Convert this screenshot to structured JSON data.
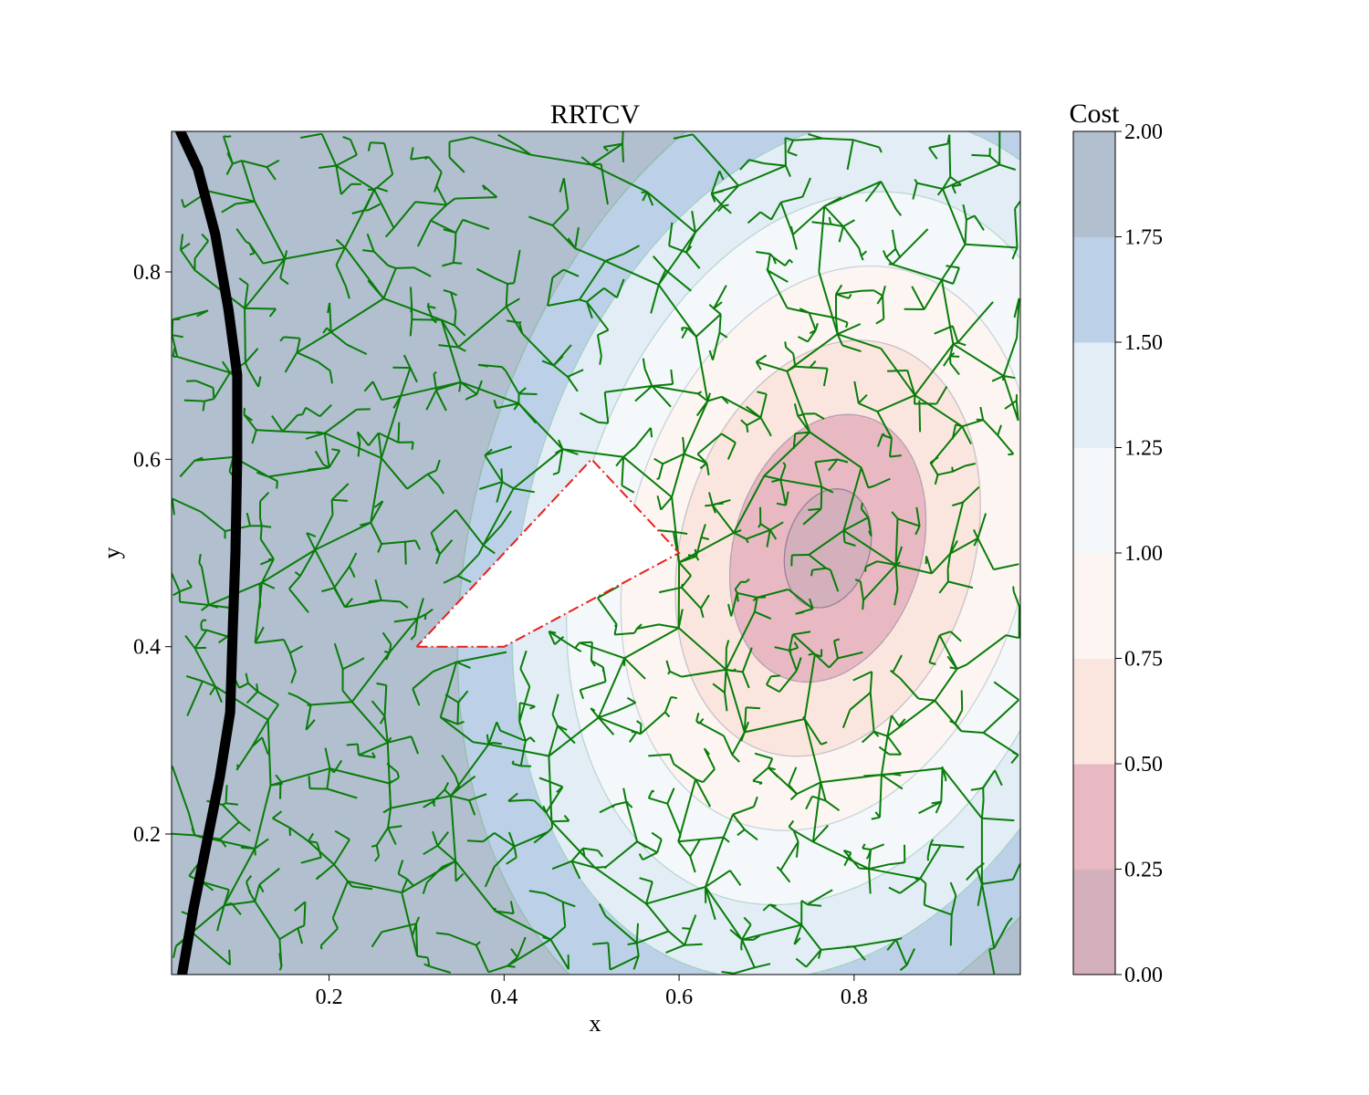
{
  "chart_data": {
    "type": "contour",
    "title": "RRTCV",
    "xlabel": "x",
    "ylabel": "y",
    "xlim": [
      0.02,
      0.99
    ],
    "ylim": [
      0.05,
      0.95
    ],
    "x_ticks": [
      0.2,
      0.4,
      0.6,
      0.8
    ],
    "y_ticks": [
      0.2,
      0.4,
      0.6,
      0.8
    ],
    "grid": false,
    "cost_field": {
      "center": [
        0.77,
        0.505
      ],
      "scale": [
        0.45,
        0.62
      ],
      "rotation_deg": -20
    },
    "colorbar": {
      "title": "Cost",
      "levels": [
        0.0,
        0.25,
        0.5,
        0.75,
        1.0,
        1.25,
        1.5,
        1.75,
        2.0
      ],
      "tick_labels": [
        "0.00",
        "0.25",
        "0.50",
        "0.75",
        "1.00",
        "1.25",
        "1.50",
        "1.75",
        "2.00"
      ],
      "colors": [
        "#d3b0bb",
        "#e8b9c2",
        "#fbe6df",
        "#fcf5f2",
        "#f4f8fb",
        "#e2edf5",
        "#bcd1e7",
        "#b1bfcf"
      ],
      "line_colors": [
        "#9a7f97",
        "#b39fb0",
        "#c8c0c6",
        "#c9d3d6",
        "#b8d6d3",
        "#9fcdc4",
        "#93bba8",
        "#8fa8a0"
      ]
    },
    "obstacle": {
      "vertices": [
        [
          0.3,
          0.4
        ],
        [
          0.4,
          0.4
        ],
        [
          0.6,
          0.5
        ],
        [
          0.5,
          0.6
        ]
      ],
      "outline_color": "#e8201a",
      "line_style": "dash-dot"
    },
    "boundary_curve": {
      "color": "#000000",
      "points": [
        [
          0.03,
          0.95
        ],
        [
          0.05,
          0.91
        ],
        [
          0.07,
          0.84
        ],
        [
          0.085,
          0.76
        ],
        [
          0.095,
          0.69
        ],
        [
          0.095,
          0.6
        ],
        [
          0.093,
          0.5
        ],
        [
          0.09,
          0.42
        ],
        [
          0.087,
          0.33
        ],
        [
          0.075,
          0.26
        ],
        [
          0.06,
          0.19
        ],
        [
          0.045,
          0.12
        ],
        [
          0.032,
          0.05
        ]
      ]
    },
    "tree": {
      "color": "#087c08",
      "seed": 7,
      "branch_count": 1500
    }
  }
}
